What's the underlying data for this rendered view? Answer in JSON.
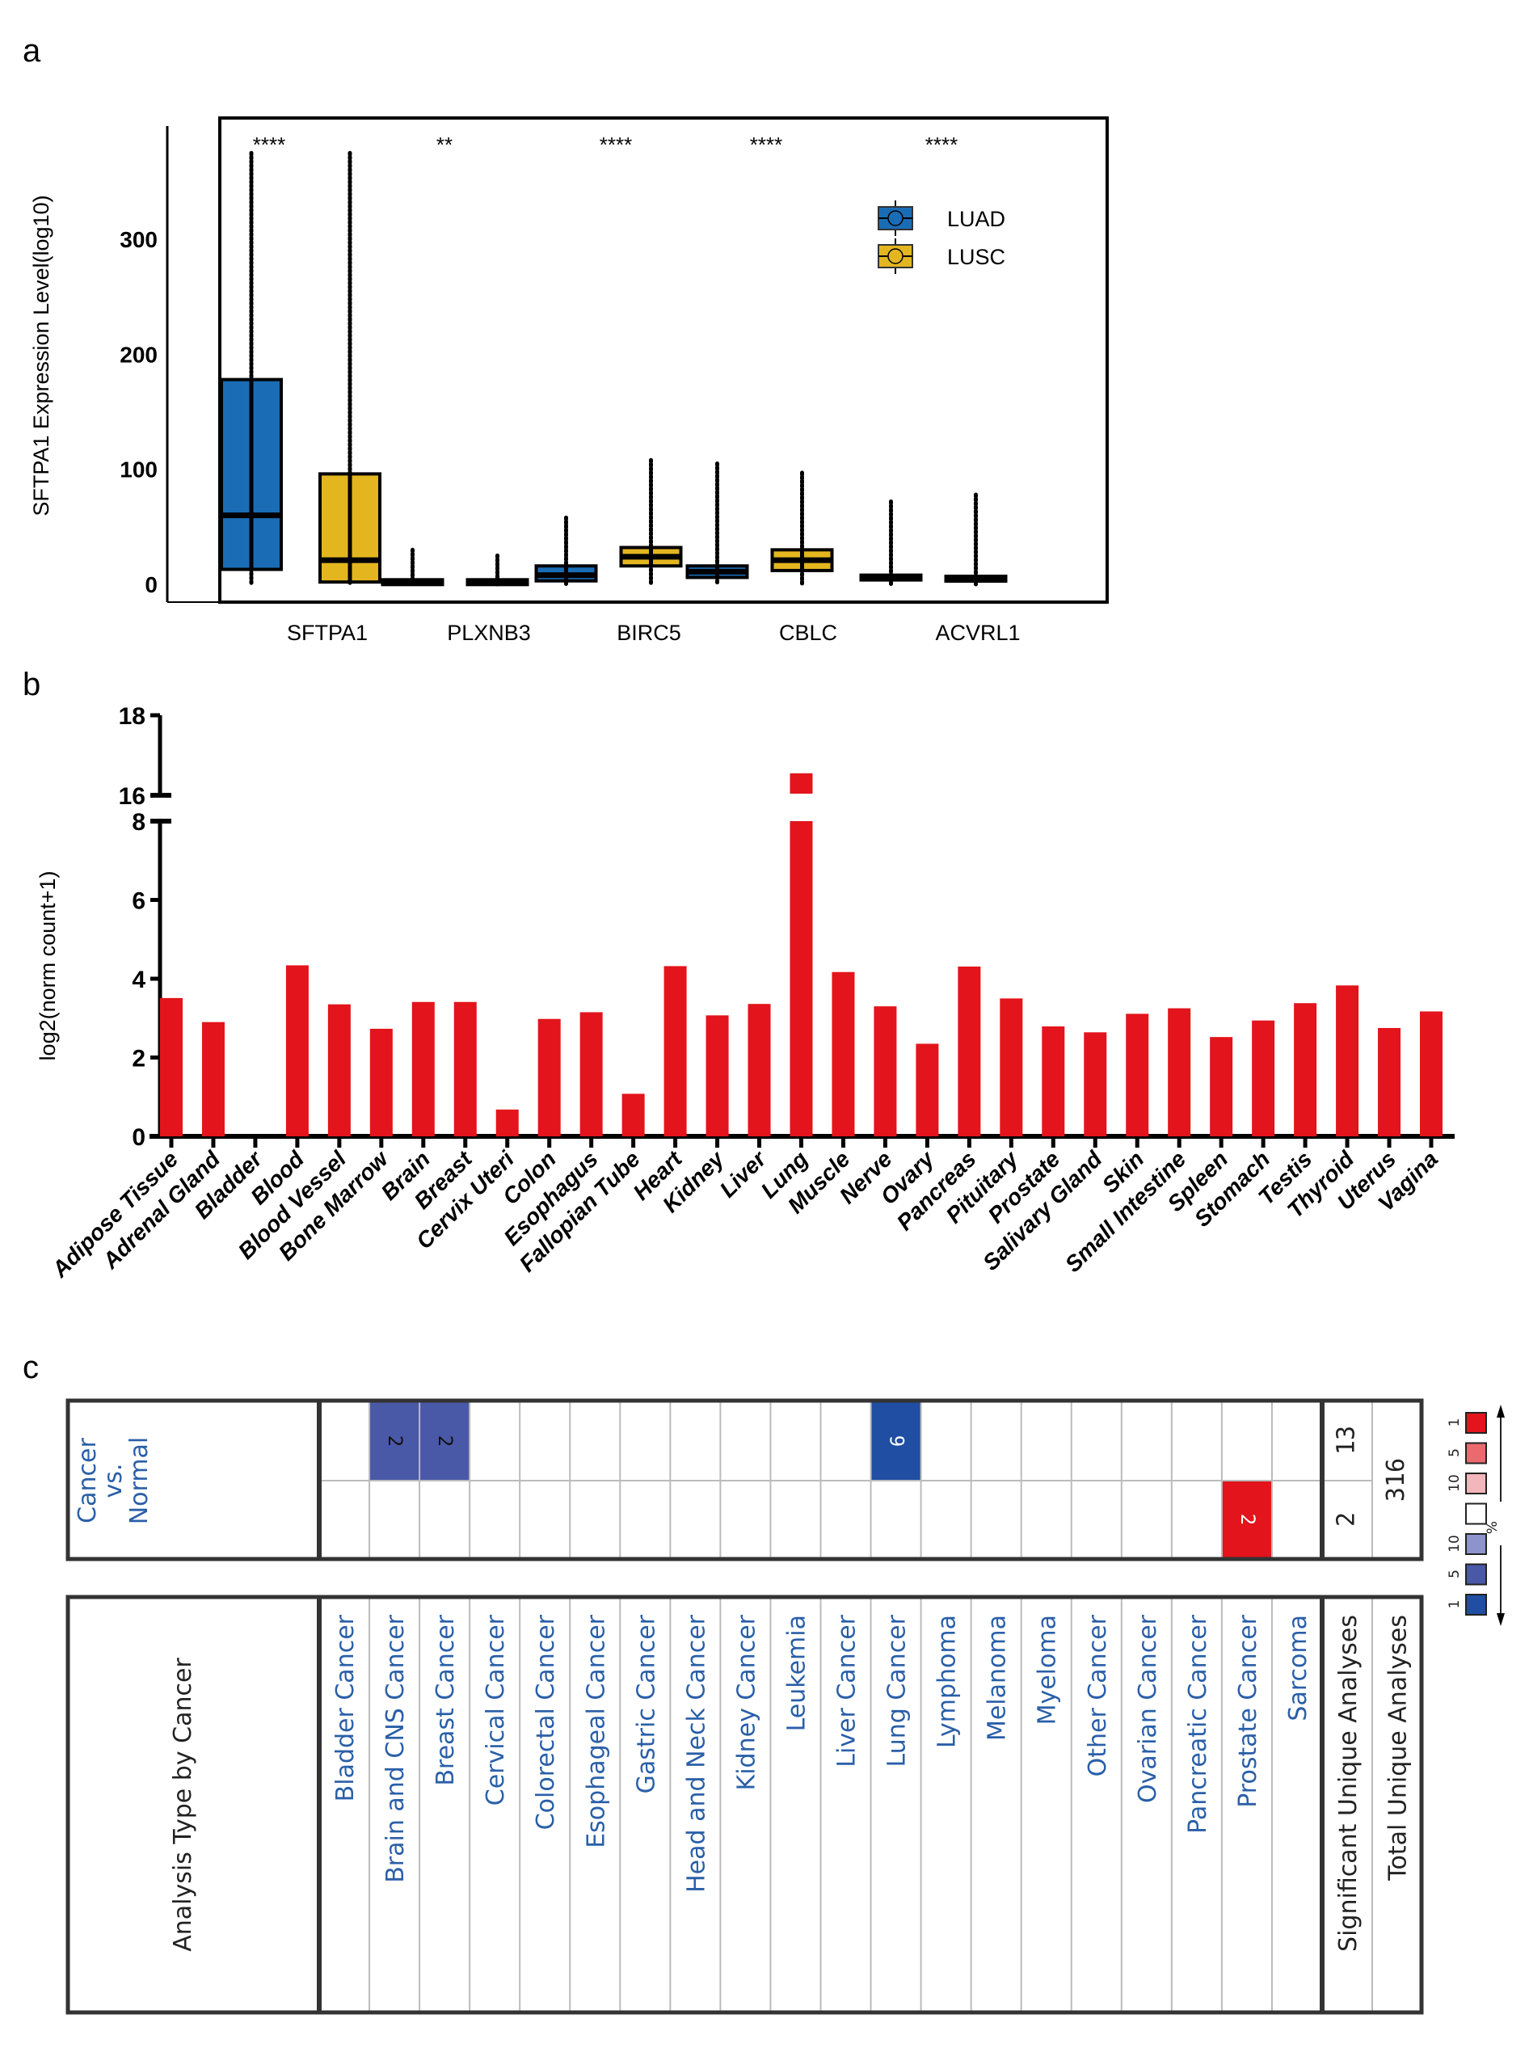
{
  "panels": {
    "a": {
      "letter": "a"
    },
    "b": {
      "letter": "b"
    },
    "c": {
      "letter": "c"
    }
  },
  "chart_data": [
    {
      "type": "box",
      "panel": "a",
      "title": "",
      "ylabel": "SFTPA1 Expression Level(log10)",
      "xlabel": "",
      "ylim": [
        0,
        380
      ],
      "yticks": [
        0,
        100,
        200,
        300
      ],
      "categories": [
        "SFTPA1",
        "PLXNB3",
        "BIRC5",
        "CBLC",
        "ACVRL1"
      ],
      "significance": [
        "****",
        "**",
        "****",
        "****",
        "****"
      ],
      "legend": {
        "position": "top-right",
        "entries": [
          {
            "name": "LUAD",
            "color": "#1a6db5"
          },
          {
            "name": "LUSC",
            "color": "#e3b620"
          }
        ]
      },
      "series": [
        {
          "name": "LUAD",
          "color": "#1a6db5",
          "boxes": [
            {
              "q1": 13,
              "median": 60,
              "q3": 178,
              "min": 0,
              "max": 375
            },
            {
              "q1": 1,
              "median": 2,
              "q3": 4,
              "min": 0,
              "max": 30
            },
            {
              "q1": 3,
              "median": 8,
              "q3": 16,
              "min": 0,
              "max": 58
            },
            {
              "q1": 6,
              "median": 11,
              "q3": 16,
              "min": 0,
              "max": 105
            },
            {
              "q1": 4,
              "median": 6,
              "q3": 8,
              "min": 0,
              "max": 72
            }
          ]
        },
        {
          "name": "LUSC",
          "color": "#e3b620",
          "boxes": [
            {
              "q1": 2,
              "median": 21,
              "q3": 96,
              "min": 0,
              "max": 375
            },
            {
              "q1": 1,
              "median": 2,
              "q3": 4,
              "min": 0,
              "max": 25
            },
            {
              "q1": 16,
              "median": 24,
              "q3": 32,
              "min": 0,
              "max": 108
            },
            {
              "q1": 12,
              "median": 21,
              "q3": 30,
              "min": 0,
              "max": 97
            },
            {
              "q1": 3,
              "median": 5,
              "q3": 7,
              "min": 0,
              "max": 78
            }
          ]
        }
      ]
    },
    {
      "type": "bar",
      "panel": "b",
      "title": "",
      "ylabel": "log2(norm count+1)",
      "xlabel": "",
      "ylim": [
        0,
        18
      ],
      "axis_break": [
        8,
        16
      ],
      "yticks": [
        0,
        2,
        4,
        6,
        8,
        16,
        18
      ],
      "bar_color": "#e3141b",
      "categories": [
        "Adipose Tissue",
        "Adrenal Gland",
        "Bladder",
        "Blood",
        "Blood Vessel",
        "Bone Marrow",
        "Brain",
        "Breast",
        "Cervix Uteri",
        "Colon",
        "Esophagus",
        "Fallopian Tube",
        "Heart",
        "Kidney",
        "Liver",
        "Lung",
        "Muscle",
        "Nerve",
        "Ovary",
        "Pancreas",
        "Pituitary",
        "Prostate",
        "Salivary Gland",
        "Skin",
        "Small Intestine",
        "Spleen",
        "Stomach",
        "Testis",
        "Thyroid",
        "Uterus",
        "Vagina"
      ],
      "values": [
        3.51,
        2.9,
        0,
        4.34,
        3.35,
        2.73,
        3.41,
        3.41,
        0.68,
        2.98,
        3.15,
        1.08,
        4.32,
        3.07,
        3.36,
        16.55,
        4.17,
        3.3,
        2.35,
        4.31,
        3.5,
        2.79,
        2.64,
        3.11,
        3.25,
        2.52,
        2.94,
        3.38,
        3.83,
        2.75,
        3.17
      ]
    },
    {
      "type": "heatmap",
      "panel": "c",
      "row_header": "Cancer vs. Normal",
      "row_header_lines": [
        "Cancer",
        "vs.",
        "Normal"
      ],
      "column_axis_title": "Analysis Type by Cancer",
      "columns": [
        "Bladder Cancer",
        "Brain and CNS Cancer",
        "Breast Cancer",
        "Cervical Cancer",
        "Colorectal Cancer",
        "Esophageal Cancer",
        "Gastric Cancer",
        "Head and Neck Cancer",
        "Kidney Cancer",
        "Leukemia",
        "Liver Cancer",
        "Lung Cancer",
        "Lymphoma",
        "Melanoma",
        "Myeloma",
        "Other Cancer",
        "Ovarian Cancer",
        "Pancreatic Cancer",
        "Prostate Cancer",
        "Sarcoma"
      ],
      "up_row": [
        null,
        2,
        2,
        null,
        null,
        null,
        null,
        null,
        null,
        null,
        null,
        9,
        null,
        null,
        null,
        null,
        null,
        null,
        null,
        null
      ],
      "down_row": [
        null,
        null,
        null,
        null,
        null,
        null,
        null,
        null,
        null,
        null,
        null,
        null,
        null,
        null,
        null,
        null,
        null,
        null,
        2,
        null
      ],
      "up_cell_colors": {
        "1": "#4a58a8",
        "2": "#4a58a8",
        "11": "#1f4ea3"
      },
      "down_cell_colors": {
        "18": "#e3141b"
      },
      "summary_headers": [
        "Significant Unique Analyses",
        "Total Unique Analyses"
      ],
      "significant_unique": {
        "up": 13,
        "down": 2
      },
      "total_unique": 316,
      "legend": {
        "unit": "%",
        "up": [
          {
            "label": "1",
            "color": "#e3141b"
          },
          {
            "label": "5",
            "color": "#ea6a70"
          },
          {
            "label": "10",
            "color": "#f3b6bb"
          }
        ],
        "neutral": {
          "color": "#ffffff"
        },
        "down": [
          {
            "label": "10",
            "color": "#8d93cc"
          },
          {
            "label": "5",
            "color": "#4a58a8"
          },
          {
            "label": "1",
            "color": "#1f4ea3"
          }
        ]
      }
    }
  ]
}
